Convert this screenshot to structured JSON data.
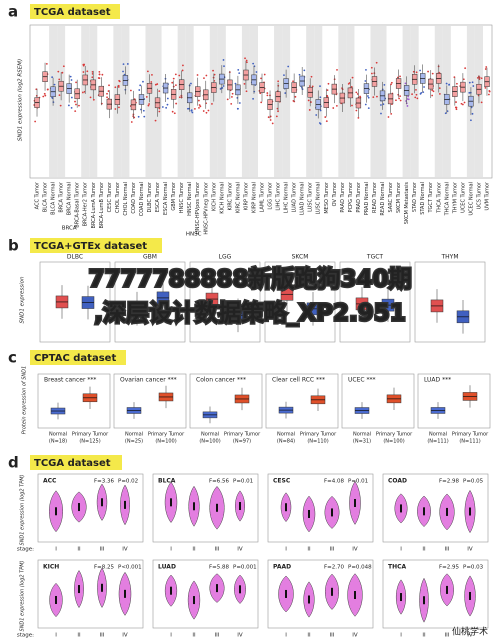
{
  "panels": {
    "a": {
      "letter": "a",
      "title": "TCGA dataset",
      "y_label": "SND1 expression (log2 RSEM)",
      "categories": [
        "ACC Tumor",
        "BLCA Tumor",
        "BLCA Normal",
        "BRCA Tumor",
        "BRCA Normal",
        "BRCA-Basal Tumor",
        "BRCA-Her2 Tumor",
        "BRCA-LumA Tumor",
        "BRCA-LumB Tumor",
        "CESC Tumor",
        "CHOL Tumor",
        "CHOL Normal",
        "COAD Tumor",
        "COAD Normal",
        "DLBC Tumor",
        "ESCA Tumor",
        "ESCA Normal",
        "GBM Tumor",
        "HNSC Tumor",
        "HNSC Normal",
        "HNSC-HPVpos Tumor",
        "HNSC-HPVneg Tumor",
        "KICH Tumor",
        "KICH Normal",
        "KIRC Tumor",
        "KIRC Normal",
        "KIRP Tumor",
        "KIRP Normal",
        "LAML Tumor",
        "LGG Tumor",
        "LIHC Tumor",
        "LIHC Normal",
        "LUAD Tumor",
        "LUAD Normal",
        "LUSC Tumor",
        "LUSC Normal",
        "MESO Tumor",
        "OV Tumor",
        "PAAD Tumor",
        "PCPG Tumor",
        "PRAD Tumor",
        "PRAD Normal",
        "READ Tumor",
        "READ Normal",
        "SARC Tumor",
        "SKCM Tumor",
        "SKCM Metastasis",
        "STAD Tumor",
        "STAD Normal",
        "TGCT Tumor",
        "THCA Tumor",
        "THCA Normal",
        "THYM Tumor",
        "UCEC Tumor",
        "UCEC Normal",
        "UCS Tumor",
        "UVM Tumor"
      ],
      "groups": [
        "BRCA",
        "HNSC"
      ]
    },
    "b": {
      "letter": "b",
      "title": "TCGA+GTEx dataset",
      "y_label": "SND1 expression",
      "subplots": [
        "DLBC",
        "GBM",
        "LGG",
        "SKCM",
        "TGCT",
        "THYM"
      ]
    },
    "c": {
      "letter": "c",
      "title": "CPTAC dataset",
      "y_label": "Protein expression of SND1",
      "subplots": [
        {
          "name": "Breast cancer ***",
          "normal": "Normal",
          "normal_n": "(N=18)",
          "tumor": "Primary Tumor",
          "tumor_n": "(N=125)"
        },
        {
          "name": "Ovarian cancer ***",
          "normal": "Normal",
          "normal_n": "(N=25)",
          "tumor": "Primary Tumor",
          "tumor_n": "(N=100)"
        },
        {
          "name": "Colon cancer ***",
          "normal": "Normal",
          "normal_n": "(N=100)",
          "tumor": "Primary Tumor",
          "tumor_n": "(N=97)"
        },
        {
          "name": "Clear cell RCC ***",
          "normal": "Normal",
          "normal_n": "(N=84)",
          "tumor": "Primary Tumor",
          "tumor_n": "(N=110)"
        },
        {
          "name": "UCEC ***",
          "normal": "Normal",
          "normal_n": "(N=31)",
          "tumor": "Primary Tumor",
          "tumor_n": "(N=100)"
        },
        {
          "name": "LUAD ***",
          "normal": "Normal",
          "normal_n": "(N=111)",
          "tumor": "Primary Tumor",
          "tumor_n": "(N=111)"
        }
      ]
    },
    "d": {
      "letter": "d",
      "title": "TCGA dataset",
      "y_label": "SND1 expression (log2 TPM)",
      "stage_prefix": "stage:",
      "stages": [
        "I",
        "II",
        "III",
        "IV"
      ],
      "subplots": [
        {
          "name": "ACC",
          "f": "F=3.36",
          "p": "P=0.02"
        },
        {
          "name": "BLCA",
          "f": "F=6.56",
          "p": "P=0.01"
        },
        {
          "name": "CESC",
          "f": "F=4.08",
          "p": "P=0.01"
        },
        {
          "name": "COAD",
          "f": "F=2.98",
          "p": "P=0.05"
        },
        {
          "name": "KICH",
          "f": "F=8.25",
          "p": "P<0.001"
        },
        {
          "name": "LUAD",
          "f": "F=5.88",
          "p": "P=0.001"
        },
        {
          "name": "PAAD",
          "f": "F=2.70",
          "p": "P=0.048"
        },
        {
          "name": "THCA",
          "f": "F=2.95",
          "p": "P=0.03"
        }
      ]
    }
  },
  "overlay": {
    "line1": "7777788888新版跑狗340期",
    "line2": ",深层设计数据策略_XP2.951"
  },
  "watermark": "仙桃学术"
}
